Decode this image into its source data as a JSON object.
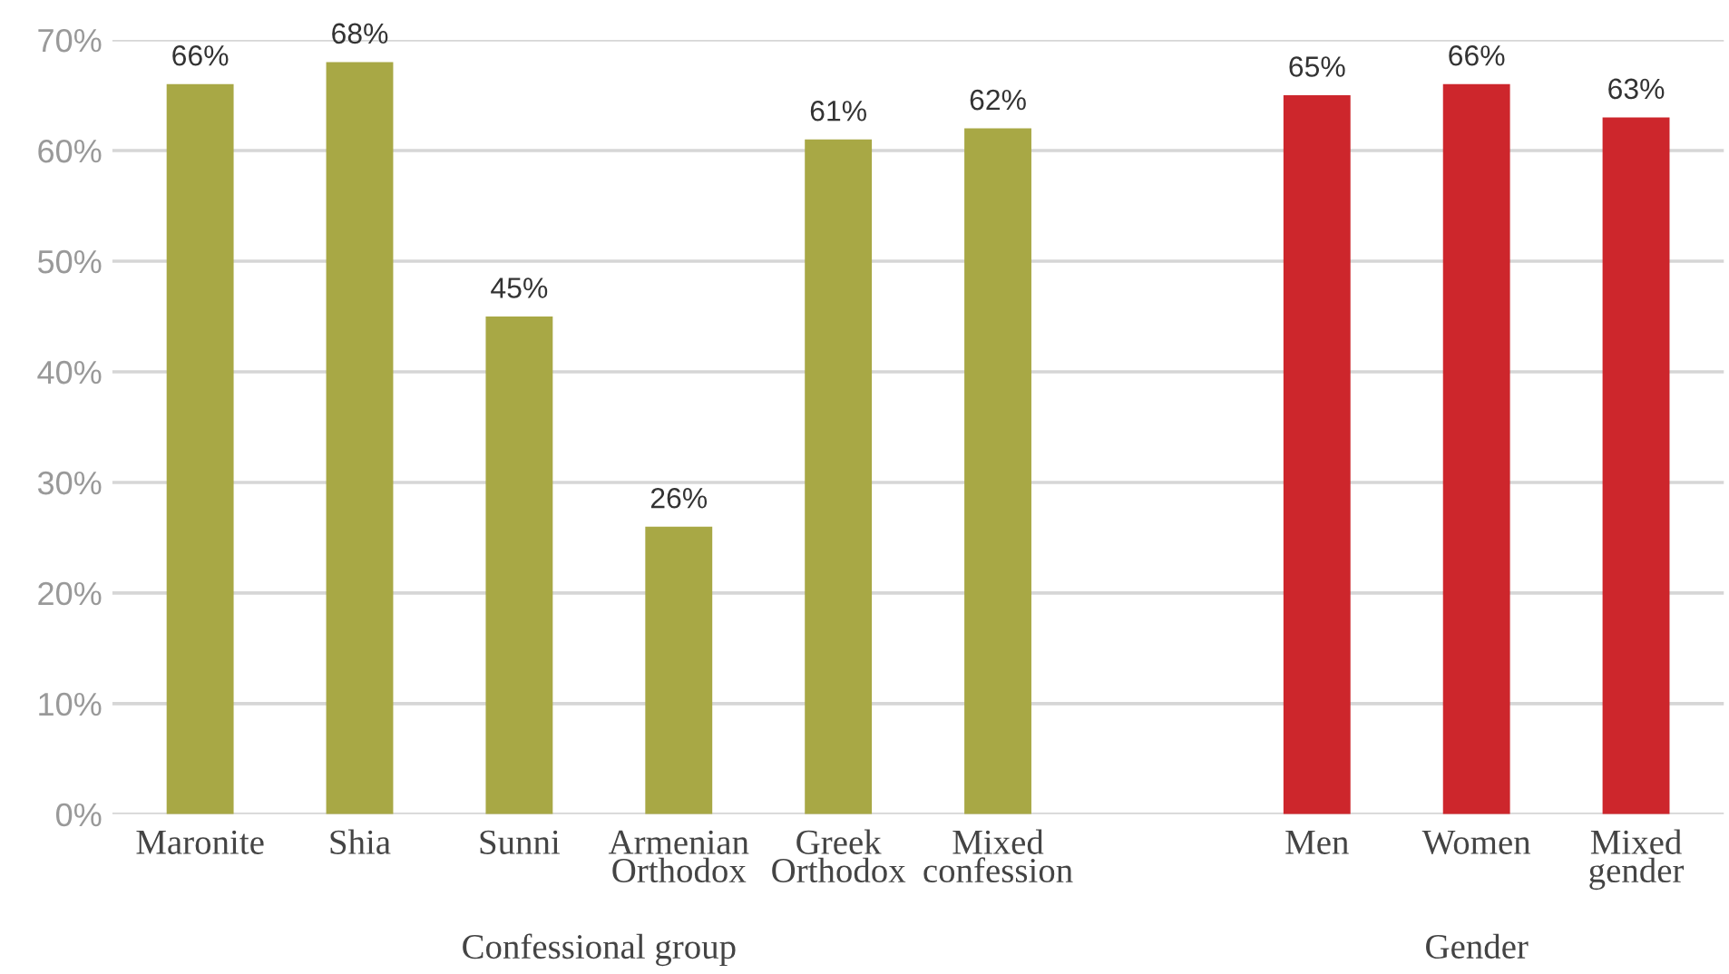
{
  "chart_data": {
    "type": "bar",
    "categories": [
      "Maronite",
      "Shia",
      "Sunni",
      "Armenian\nOrthodox",
      "Greek\nOrthodox",
      "Mixed\nconfession",
      null,
      "Men",
      "Women",
      "Mixed\ngender"
    ],
    "values": [
      66,
      68,
      45,
      26,
      61,
      62,
      null,
      65,
      66,
      63
    ],
    "value_labels": [
      "66%",
      "68%",
      "45%",
      "26%",
      "61%",
      "62%",
      null,
      "65%",
      "66%",
      "63%"
    ],
    "colors": [
      "#a8a845",
      "#a8a845",
      "#a8a845",
      "#a8a845",
      "#a8a845",
      "#a8a845",
      null,
      "#cd262c",
      "#cd262c",
      "#cd262c"
    ],
    "ylim": [
      0,
      70
    ],
    "yticks": [
      {
        "value": 0,
        "label": "0%"
      },
      {
        "value": 10,
        "label": "10%"
      },
      {
        "value": 20,
        "label": "20%"
      },
      {
        "value": 30,
        "label": "30%"
      },
      {
        "value": 40,
        "label": "40%"
      },
      {
        "value": 50,
        "label": "50%"
      },
      {
        "value": 60,
        "label": "60%"
      },
      {
        "value": 70,
        "label": "70%"
      }
    ],
    "grid": "y",
    "annotations": [
      "Confessional group",
      "Gender"
    ]
  }
}
